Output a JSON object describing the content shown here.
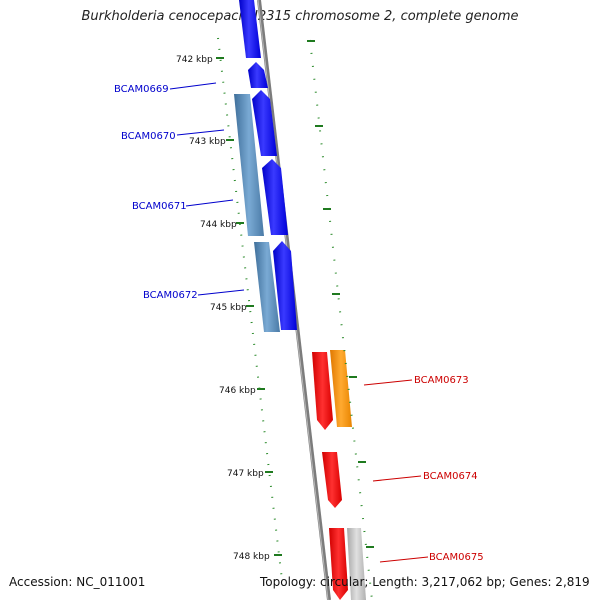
{
  "title": "Burkholderia cenocepacia J2315 chromosome 2, complete genome",
  "ticks": [
    "742 kbp",
    "743 kbp",
    "744 kbp",
    "745 kbp",
    "746 kbp",
    "747 kbp",
    "748 kbp"
  ],
  "genes": [
    {
      "name": "BCAM0669",
      "strand": "forward"
    },
    {
      "name": "BCAM0670",
      "strand": "forward"
    },
    {
      "name": "BCAM0671",
      "strand": "forward"
    },
    {
      "name": "BCAM0672",
      "strand": "forward"
    },
    {
      "name": "BCAM0673",
      "strand": "reverse"
    },
    {
      "name": "BCAM0674",
      "strand": "reverse"
    },
    {
      "name": "BCAM0675",
      "strand": "reverse"
    }
  ],
  "footer": {
    "accession": "Accession: NC_011001",
    "topology": "Topology: circular;",
    "length": "Length: 3,217,062 bp;",
    "genes_count": "Genes: 2,819"
  },
  "colors": {
    "forward_cds": "#0000ff",
    "forward_gene": "#5a8fc0",
    "reverse_cds": "#ff0000",
    "reverse_gene_orange": "#ff8c00",
    "reverse_gene_grey": "#c0c0c0",
    "backbone": "#808080",
    "tick": "#228b22"
  }
}
